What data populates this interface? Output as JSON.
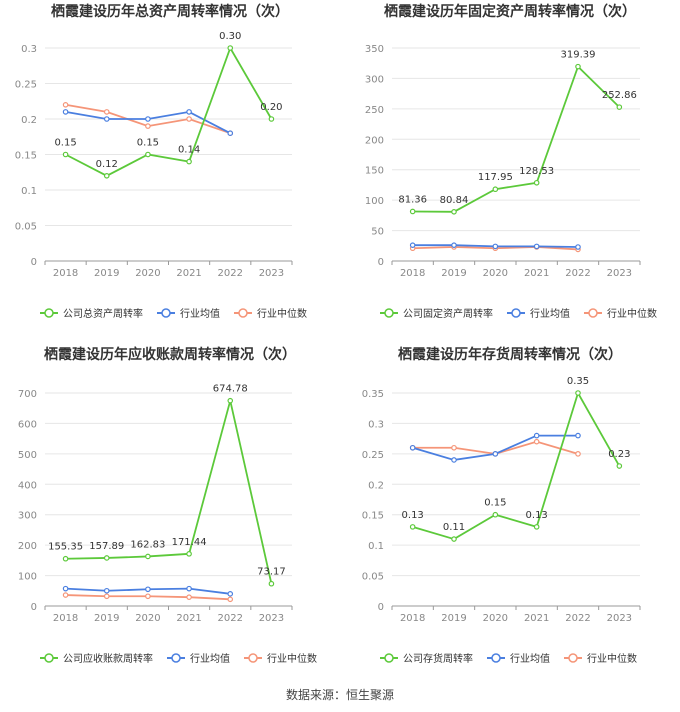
{
  "footer": {
    "label": "数据来源：",
    "source": "恒生聚源"
  },
  "colors": {
    "company": "#5cc93a",
    "avg": "#4a7fe0",
    "median": "#f59578"
  },
  "chart_data": [
    {
      "type": "line",
      "title": "栖霞建设历年总资产周转率情况（次）",
      "categories": [
        "2018",
        "2019",
        "2020",
        "2021",
        "2022",
        "2023"
      ],
      "ylim": [
        0,
        0.3
      ],
      "yticks": [
        "0",
        "0.05",
        "0.1",
        "0.15",
        "0.2",
        "0.25",
        "0.3"
      ],
      "legend_position": "bottom",
      "series": [
        {
          "name": "公司总资产周转率",
          "values": [
            0.15,
            0.12,
            0.15,
            0.14,
            0.3,
            0.2
          ],
          "labels": [
            "0.15",
            "0.12",
            "0.15",
            "0.14",
            "0.30",
            "0.20"
          ]
        },
        {
          "name": "行业均值",
          "values": [
            0.21,
            0.2,
            0.2,
            0.21,
            0.18,
            null
          ]
        },
        {
          "name": "行业中位数",
          "values": [
            0.22,
            0.21,
            0.19,
            0.2,
            0.18,
            null
          ]
        }
      ]
    },
    {
      "type": "line",
      "title": "栖霞建设历年固定资产周转率情况（次）",
      "categories": [
        "2018",
        "2019",
        "2020",
        "2021",
        "2022",
        "2023"
      ],
      "ylim": [
        0,
        350
      ],
      "yticks": [
        "0",
        "50",
        "100",
        "150",
        "200",
        "250",
        "300",
        "350"
      ],
      "legend_position": "bottom",
      "series": [
        {
          "name": "公司固定资产周转率",
          "values": [
            81.36,
            80.84,
            117.95,
            128.53,
            319.39,
            252.86
          ],
          "labels": [
            "81.36",
            "80.84",
            "117.95",
            "128.53",
            "319.39",
            "252.86"
          ]
        },
        {
          "name": "行业均值",
          "values": [
            26,
            26,
            24,
            24,
            23,
            null
          ]
        },
        {
          "name": "行业中位数",
          "values": [
            21,
            23,
            21,
            23,
            19,
            null
          ]
        }
      ]
    },
    {
      "type": "line",
      "title": "栖霞建设历年应收账款周转率情况（次）",
      "categories": [
        "2018",
        "2019",
        "2020",
        "2021",
        "2022",
        "2023"
      ],
      "ylim": [
        0,
        700
      ],
      "yticks": [
        "0",
        "100",
        "200",
        "300",
        "400",
        "500",
        "600",
        "700"
      ],
      "legend_position": "bottom",
      "series": [
        {
          "name": "公司应收账款周转率",
          "values": [
            155.35,
            157.89,
            162.83,
            171.44,
            674.78,
            73.17
          ],
          "labels": [
            "155.35",
            "157.89",
            "162.83",
            "171.44",
            "674.78",
            "73.17"
          ]
        },
        {
          "name": "行业均值",
          "values": [
            57,
            50,
            55,
            57,
            40,
            null
          ]
        },
        {
          "name": "行业中位数",
          "values": [
            36,
            32,
            32,
            29,
            22,
            null
          ]
        }
      ]
    },
    {
      "type": "line",
      "title": "栖霞建设历年存货周转率情况（次）",
      "categories": [
        "2018",
        "2019",
        "2020",
        "2021",
        "2022",
        "2023"
      ],
      "ylim": [
        0,
        0.35
      ],
      "yticks": [
        "0",
        "0.05",
        "0.1",
        "0.15",
        "0.2",
        "0.25",
        "0.3",
        "0.35"
      ],
      "legend_position": "bottom",
      "series": [
        {
          "name": "公司存货周转率",
          "values": [
            0.13,
            0.11,
            0.15,
            0.13,
            0.35,
            0.23
          ],
          "labels": [
            "0.13",
            "0.11",
            "0.15",
            "0.13",
            "0.35",
            "0.23"
          ]
        },
        {
          "name": "行业均值",
          "values": [
            0.26,
            0.24,
            0.25,
            0.28,
            0.28,
            null
          ]
        },
        {
          "name": "行业中位数",
          "values": [
            0.26,
            0.26,
            0.25,
            0.27,
            0.25,
            null
          ]
        }
      ]
    }
  ]
}
